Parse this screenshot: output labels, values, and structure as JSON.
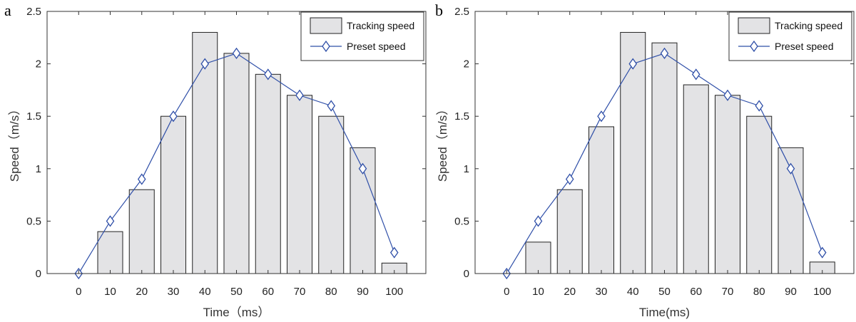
{
  "chart_data": [
    {
      "panel_label": "a",
      "type": "bar",
      "x": [
        0,
        10,
        20,
        30,
        40,
        50,
        60,
        70,
        80,
        90,
        100
      ],
      "series": [
        {
          "name": "Tracking speed",
          "type": "bar",
          "values": [
            0,
            0.4,
            0.8,
            1.5,
            2.3,
            2.1,
            1.9,
            1.7,
            1.5,
            1.2,
            0.1
          ]
        },
        {
          "name": "Preset speed",
          "type": "line",
          "marker": "diamond",
          "values": [
            0,
            0.5,
            0.9,
            1.5,
            2.0,
            2.1,
            1.9,
            1.7,
            1.6,
            1.0,
            0.2
          ]
        }
      ],
      "xlabel": "Time（ms）",
      "ylabel": "Speed（m/s）",
      "xlim": [
        -10,
        110
      ],
      "ylim": [
        0,
        2.5
      ],
      "yticks": [
        0,
        0.5,
        1,
        1.5,
        2,
        2.5
      ],
      "legend_position": "top-right",
      "grid": false
    },
    {
      "panel_label": "b",
      "type": "bar",
      "x": [
        0,
        10,
        20,
        30,
        40,
        50,
        60,
        70,
        80,
        90,
        100
      ],
      "series": [
        {
          "name": "Tracking speed",
          "type": "bar",
          "values": [
            0,
            0.3,
            0.8,
            1.4,
            2.3,
            2.2,
            1.8,
            1.7,
            1.5,
            1.2,
            0.11
          ]
        },
        {
          "name": "Preset speed",
          "type": "line",
          "marker": "diamond",
          "values": [
            0,
            0.5,
            0.9,
            1.5,
            2.0,
            2.1,
            1.9,
            1.7,
            1.6,
            1.0,
            0.2
          ]
        }
      ],
      "xlabel": "Time(ms)",
      "ylabel": "Speed（m/s）",
      "xlim": [
        -10,
        110
      ],
      "ylim": [
        0,
        2.5
      ],
      "yticks": [
        0,
        0.5,
        1,
        1.5,
        2,
        2.5
      ],
      "legend_position": "top-right",
      "grid": false
    }
  ],
  "colors": {
    "bar_fill": "#e3e3e5",
    "bar_stroke": "#222222",
    "line": "#2f4fa8",
    "marker": "#2f4fa8",
    "axis": "#333333"
  }
}
